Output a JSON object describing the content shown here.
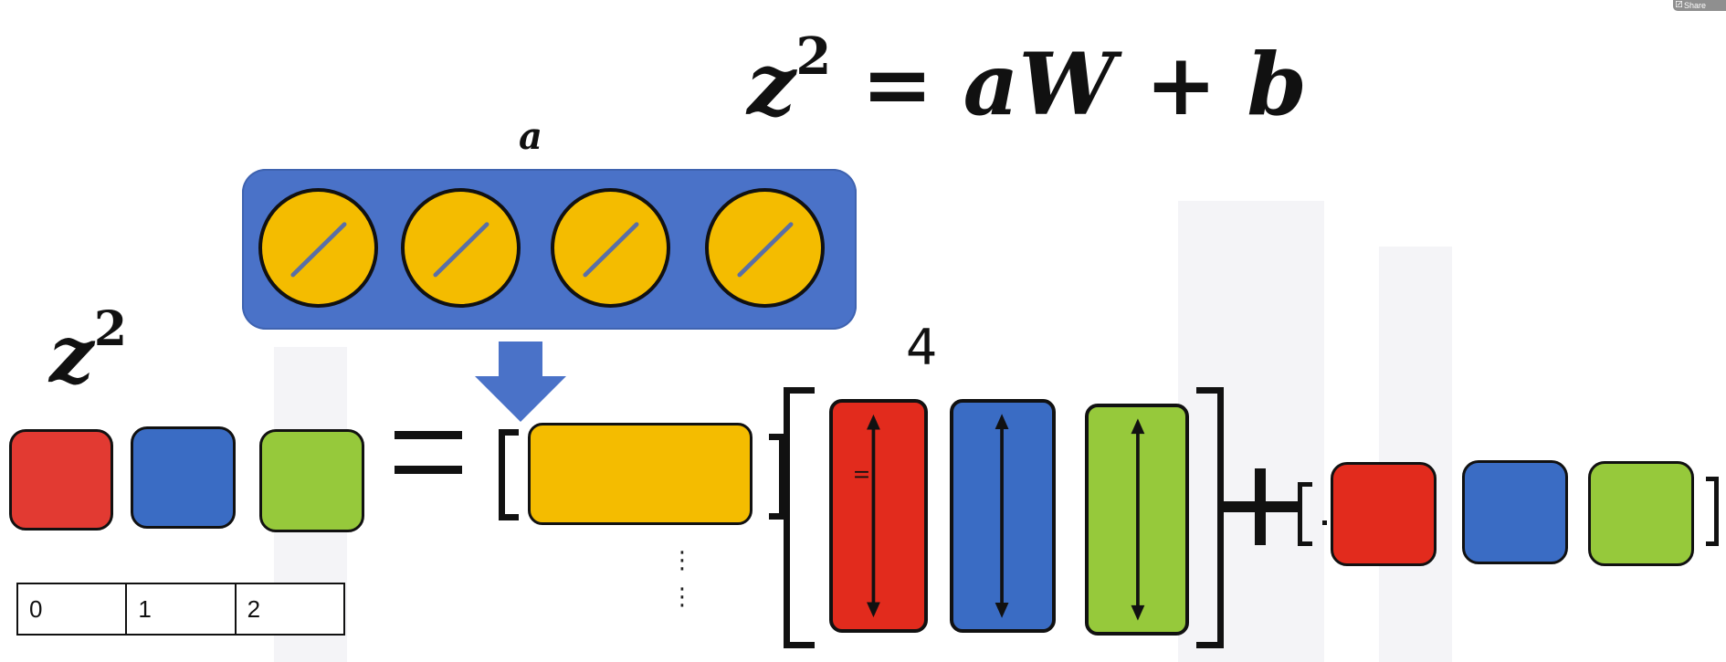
{
  "toolbar": {
    "share_label": "Share",
    "share_icon": "edit-icon"
  },
  "equation": {
    "lhs": "z",
    "superscript": "2",
    "equals": "=",
    "a": "a",
    "W": "W",
    "plus": "+",
    "b": "b"
  },
  "activation_label": "a",
  "neuron_count": 4,
  "z_label": {
    "base": "z",
    "superscript": "2"
  },
  "weights_dimension_label": "4",
  "index_table": {
    "cells": [
      "0",
      "1",
      "2"
    ]
  },
  "colors": {
    "red": "#e22b1d",
    "blue": "#3a6cc4",
    "green": "#96c93b",
    "yellow": "#f4bc00",
    "neuron_box": "#4a72c8",
    "arrow": "#4a72c8",
    "outline": "#111111"
  }
}
